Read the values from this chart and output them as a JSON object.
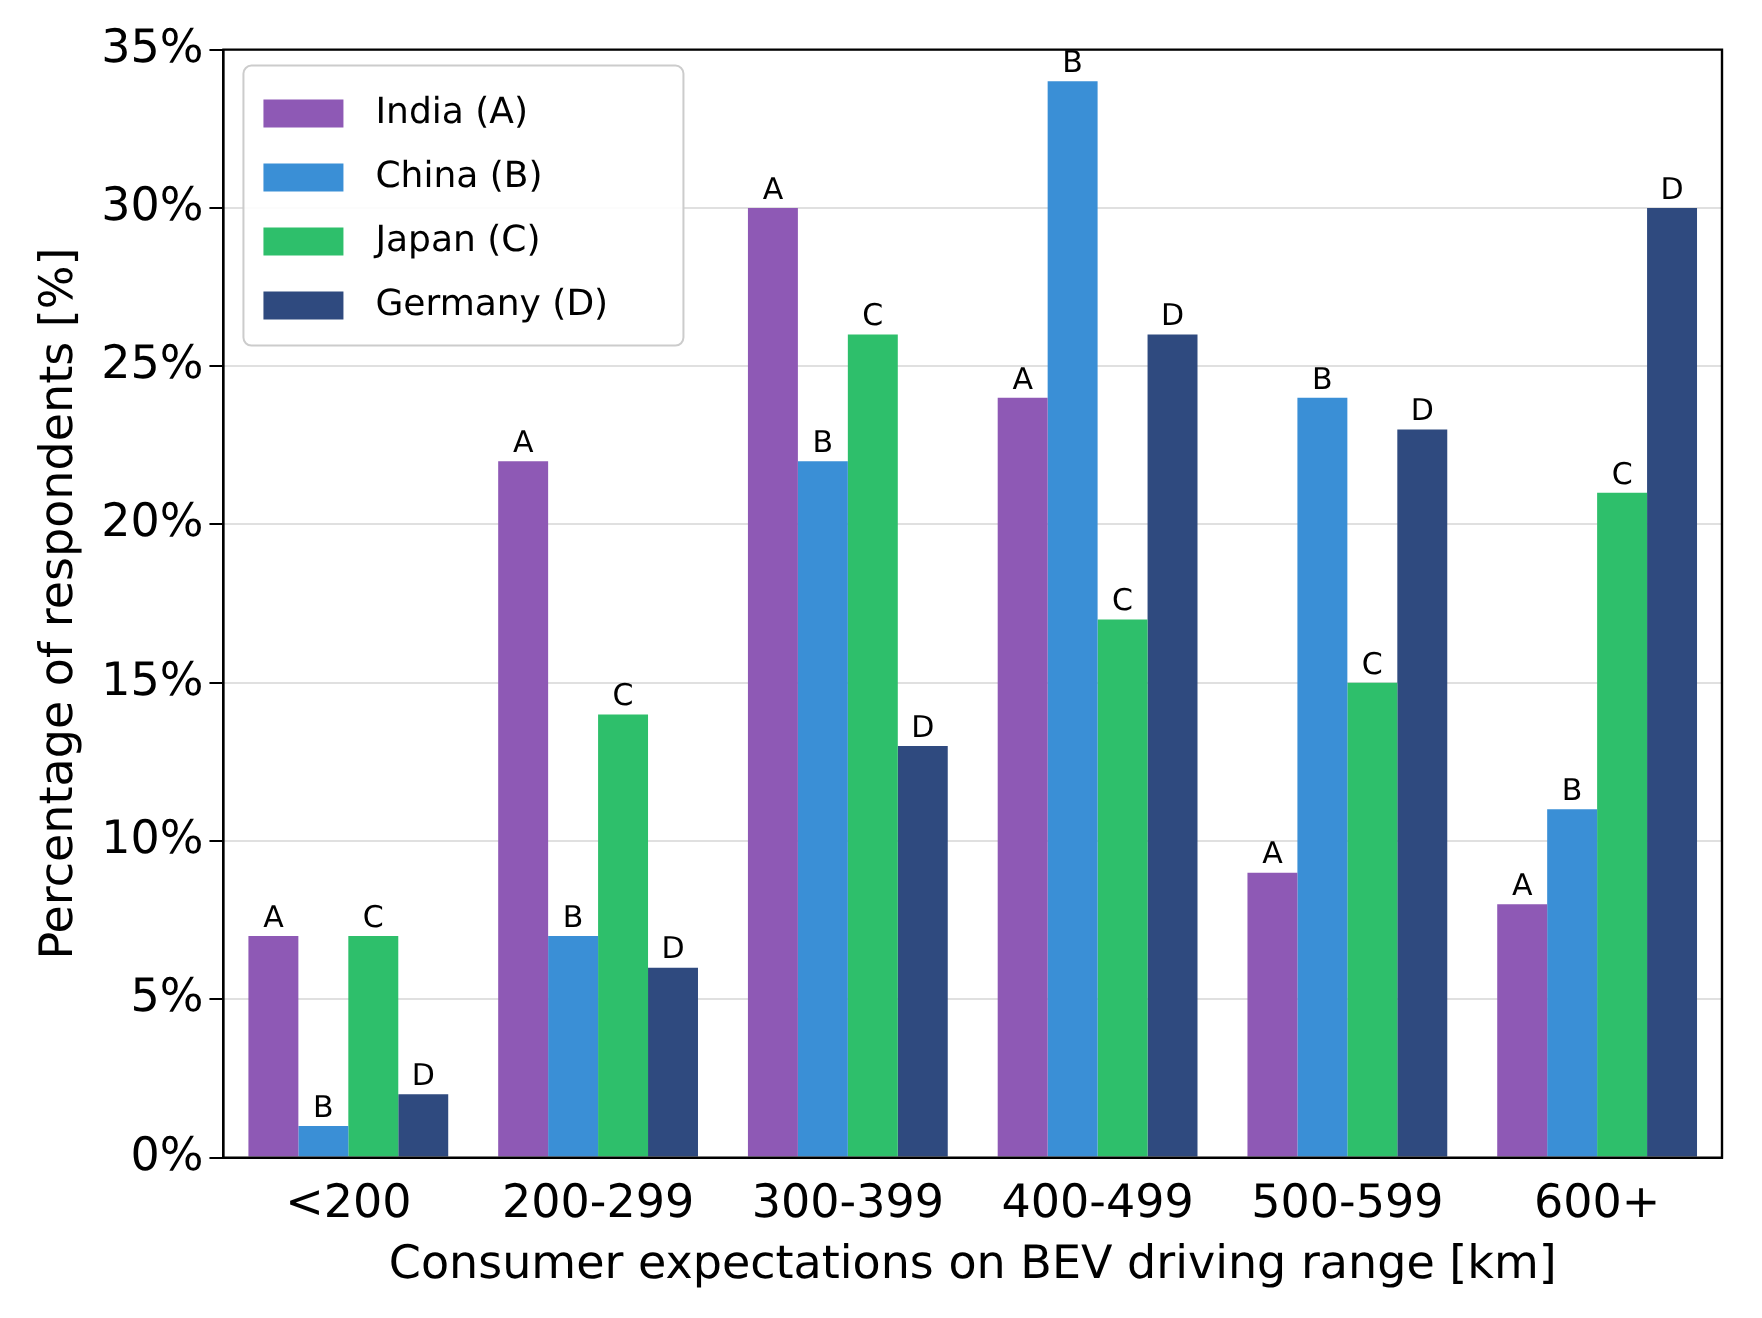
{
  "chart_data": {
    "type": "bar",
    "xlabel": "Consumer expectations on BEV driving range [km]",
    "ylabel": "Percentage of respondents [%]",
    "categories": [
      "<200",
      "200-299",
      "300-399",
      "400-499",
      "500-599",
      "600+"
    ],
    "series": [
      {
        "name": "India (A)",
        "color": "#8e59b5",
        "values": [
          7,
          22,
          30,
          24,
          9,
          8
        ],
        "value_labels": [
          "A",
          "A",
          "A",
          "A",
          "A",
          "A"
        ]
      },
      {
        "name": "China (B)",
        "color": "#3a8fd6",
        "values": [
          1,
          7,
          22,
          34,
          24,
          11
        ],
        "value_labels": [
          "B",
          "B",
          "B",
          "B",
          "B",
          "B"
        ]
      },
      {
        "name": "Japan (C)",
        "color": "#2ebf6b",
        "values": [
          7,
          14,
          26,
          17,
          15,
          21
        ],
        "value_labels": [
          "C",
          "C",
          "C",
          "C",
          "C",
          "C"
        ]
      },
      {
        "name": "Germany (D)",
        "color": "#2f4a7f",
        "values": [
          2,
          6,
          13,
          26,
          23,
          30
        ],
        "value_labels": [
          "D",
          "D",
          "D",
          "D",
          "D",
          "D"
        ]
      }
    ],
    "ylim": [
      0,
      35
    ],
    "yticks": [
      {
        "value": 0,
        "label": "0%"
      },
      {
        "value": 5,
        "label": "5%"
      },
      {
        "value": 10,
        "label": "10%"
      },
      {
        "value": 15,
        "label": "15%"
      },
      {
        "value": 20,
        "label": "20%"
      },
      {
        "value": 25,
        "label": "25%"
      },
      {
        "value": 30,
        "label": "30%"
      },
      {
        "value": 35,
        "label": "35%"
      }
    ],
    "grid": "y",
    "legend": "top left"
  }
}
